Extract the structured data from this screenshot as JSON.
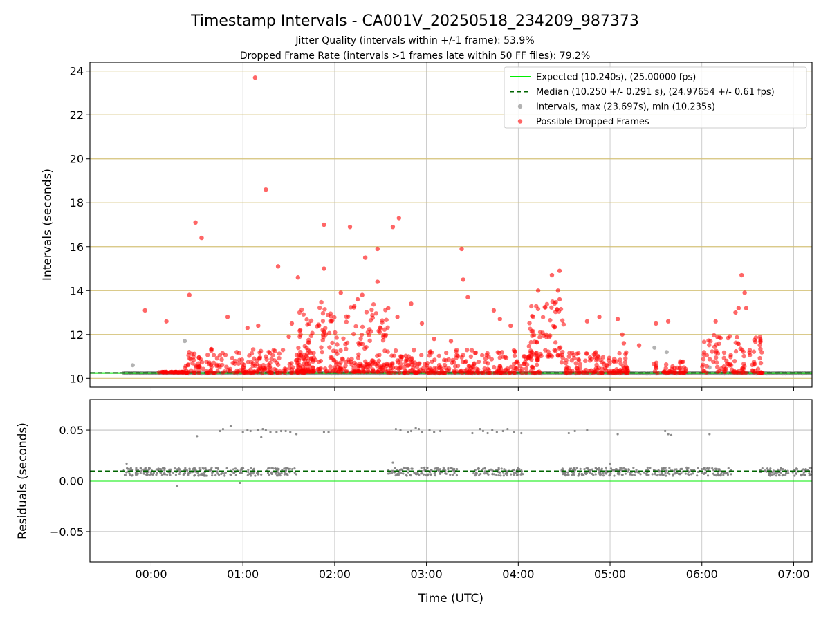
{
  "figure": {
    "title": "Timestamp Intervals - CA001V_20250518_234209_987373",
    "subtitle_1": "Jitter Quality (intervals within +/-1 frame): 53.9%",
    "subtitle_2": "Dropped Frame Rate (intervals >1 frames late within 50 FF files): 79.2%"
  },
  "chart_data": [
    {
      "type": "scatter",
      "panel": "top",
      "ylabel": "Intervals (seconds)",
      "xlabel": "",
      "xlim": [
        "23:20",
        "07:12"
      ],
      "ylim": [
        9.6,
        24.4
      ],
      "x_tick_labels": [
        "00:00",
        "01:00",
        "02:00",
        "03:00",
        "04:00",
        "05:00",
        "06:00",
        "07:00"
      ],
      "y_ticks": [
        10,
        12,
        14,
        16,
        18,
        20,
        22,
        24
      ],
      "grid": true,
      "legend_position": "top-right",
      "colors": {
        "expected": "#00ee00",
        "median": "#006400",
        "intervals": "#808080",
        "dropped": "#ff0000",
        "hgrid": "#d4c27a"
      },
      "series": [
        {
          "name": "Expected (10.240s), (25.00000 fps)",
          "kind": "hline",
          "y": 10.24
        },
        {
          "name": "Median (10.250 +/- 0.291 s), (24.97654 +/- 0.61 fps)",
          "kind": "hline-dashed",
          "y": 10.25
        },
        {
          "name": "Intervals, max (23.697s), min (10.235s)",
          "kind": "points",
          "x_range": [
            "23:42",
            "07:12"
          ],
          "points": [
            [
              "23:48",
              10.6
            ],
            [
              "00:22",
              11.7
            ],
            [
              "05:29",
              11.4
            ],
            [
              "06:05",
              10.5
            ],
            [
              "05:37",
              11.2
            ]
          ]
        },
        {
          "name": "Possible Dropped Frames",
          "kind": "points",
          "points": [
            [
              "01:08",
              23.7
            ],
            [
              "01:15",
              18.6
            ],
            [
              "00:29",
              17.1
            ],
            [
              "00:33",
              16.4
            ],
            [
              "01:53",
              17.0
            ],
            [
              "02:10",
              16.9
            ],
            [
              "02:42",
              17.3
            ],
            [
              "02:38",
              16.9
            ],
            [
              "02:28",
              15.9
            ],
            [
              "02:20",
              15.5
            ],
            [
              "01:53",
              15.0
            ],
            [
              "01:23",
              15.1
            ],
            [
              "03:23",
              15.9
            ],
            [
              "03:24",
              14.5
            ],
            [
              "04:27",
              14.9
            ],
            [
              "04:22",
              14.7
            ],
            [
              "06:26",
              14.7
            ],
            [
              "00:25",
              13.8
            ],
            [
              "01:36",
              14.6
            ],
            [
              "02:28",
              14.4
            ],
            [
              "03:27",
              13.7
            ],
            [
              "04:26",
              14.0
            ],
            [
              "04:27",
              13.6
            ],
            [
              "06:28",
              13.9
            ],
            [
              "06:24",
              13.2
            ],
            [
              "06:29",
              13.2
            ],
            [
              "06:22",
              13.0
            ],
            [
              "06:09",
              12.6
            ],
            [
              "05:30",
              12.5
            ],
            [
              "05:38",
              12.6
            ],
            [
              "23:56",
              13.1
            ],
            [
              "00:10",
              12.6
            ],
            [
              "02:35",
              13.2
            ],
            [
              "02:41",
              12.8
            ],
            [
              "02:50",
              13.4
            ],
            [
              "03:44",
              13.1
            ],
            [
              "03:48",
              12.7
            ],
            [
              "04:13",
              14.0
            ],
            [
              "00:50",
              12.8
            ],
            [
              "01:03",
              12.3
            ],
            [
              "01:10",
              12.4
            ],
            [
              "01:32",
              12.5
            ],
            [
              "02:04",
              13.9
            ],
            [
              "02:15",
              13.6
            ],
            [
              "02:18",
              13.8
            ],
            [
              "05:05",
              12.7
            ],
            [
              "04:53",
              12.8
            ],
            [
              "05:08",
              12.0
            ],
            [
              "04:45",
              12.6
            ],
            [
              "03:05",
              11.8
            ],
            [
              "03:16",
              11.7
            ],
            [
              "01:30",
              11.9
            ],
            [
              "02:57",
              12.5
            ],
            [
              "03:55",
              12.4
            ],
            [
              "05:09",
              11.6
            ],
            [
              "05:19",
              11.5
            ]
          ],
          "clusters": [
            {
              "x_range": [
                "00:05",
                "00:22"
              ],
              "y": 10.27,
              "count": 40
            },
            {
              "x_range": [
                "00:22",
                "01:45"
              ],
              "y_range": [
                10.25,
                11.4
              ],
              "count": 220
            },
            {
              "x_range": [
                "01:35",
                "02:35"
              ],
              "y_range": [
                10.3,
                13.5
              ],
              "count": 260
            },
            {
              "x_range": [
                "02:35",
                "04:15"
              ],
              "y_range": [
                10.25,
                11.3
              ],
              "count": 260
            },
            {
              "x_range": [
                "04:07",
                "04:30"
              ],
              "y_range": [
                11.0,
                13.5
              ],
              "count": 70
            },
            {
              "x_range": [
                "04:28",
                "05:12"
              ],
              "y_range": [
                10.25,
                11.2
              ],
              "count": 120
            },
            {
              "x_range": [
                "05:28",
                "05:50"
              ],
              "y_range": [
                10.25,
                10.9
              ],
              "count": 45
            },
            {
              "x_range": [
                "06:00",
                "06:40"
              ],
              "y_range": [
                10.25,
                12.0
              ],
              "count": 110
            }
          ]
        }
      ]
    },
    {
      "type": "scatter",
      "panel": "bottom",
      "ylabel": "Residuals (seconds)",
      "xlabel": "Time (UTC)",
      "xlim": [
        "23:20",
        "07:12"
      ],
      "ylim": [
        -0.08,
        0.08
      ],
      "x_tick_labels": [
        "00:00",
        "01:00",
        "02:00",
        "03:00",
        "04:00",
        "05:00",
        "06:00",
        "07:00"
      ],
      "y_tick_labels": [
        "−0.05",
        "0.00",
        "0.05"
      ],
      "y_ticks": [
        -0.05,
        0.0,
        0.05
      ],
      "grid": true,
      "series": [
        {
          "kind": "hline",
          "y": 0.0,
          "color": "#00ee00"
        },
        {
          "kind": "hline-dashed",
          "y": 0.0095,
          "color": "#006400"
        },
        {
          "kind": "points",
          "color": "#808080",
          "band": {
            "y_range": [
              0.005,
              0.013
            ],
            "segments": [
              [
                "23:42",
                "01:12"
              ],
              [
                "01:15",
                "01:35"
              ],
              [
                "02:35",
                "03:20"
              ],
              [
                "03:30",
                "04:03"
              ],
              [
                "04:28",
                "06:20"
              ],
              [
                "06:38",
                "07:12"
              ]
            ]
          },
          "points": [
            [
              "23:44",
              0.017
            ],
            [
              "00:17",
              -0.005
            ],
            [
              "00:30",
              0.044
            ],
            [
              "00:45",
              0.049
            ],
            [
              "00:47",
              0.051
            ],
            [
              "00:52",
              0.054
            ],
            [
              "01:00",
              0.048
            ],
            [
              "01:03",
              0.05
            ],
            [
              "01:05",
              0.049
            ],
            [
              "01:10",
              0.05
            ],
            [
              "01:12",
              0.043
            ],
            [
              "01:13",
              0.051
            ],
            [
              "01:15",
              0.05
            ],
            [
              "01:18",
              0.048
            ],
            [
              "01:22",
              0.048
            ],
            [
              "01:25",
              0.049
            ],
            [
              "01:28",
              0.049
            ],
            [
              "01:31",
              0.048
            ],
            [
              "01:35",
              0.046
            ],
            [
              "01:53",
              0.048
            ],
            [
              "01:56",
              0.048
            ],
            [
              "02:40",
              0.051
            ],
            [
              "02:43",
              0.05
            ],
            [
              "02:48",
              0.048
            ],
            [
              "02:50",
              0.049
            ],
            [
              "02:53",
              0.052
            ],
            [
              "02:55",
              0.051
            ],
            [
              "02:57",
              0.048
            ],
            [
              "03:02",
              0.05
            ],
            [
              "03:05",
              0.048
            ],
            [
              "03:09",
              0.049
            ],
            [
              "03:30",
              0.047
            ],
            [
              "03:35",
              0.051
            ],
            [
              "03:37",
              0.049
            ],
            [
              "03:40",
              0.047
            ],
            [
              "03:43",
              0.05
            ],
            [
              "03:46",
              0.048
            ],
            [
              "03:50",
              0.049
            ],
            [
              "03:53",
              0.051
            ],
            [
              "03:57",
              0.048
            ],
            [
              "04:02",
              0.047
            ],
            [
              "04:33",
              0.047
            ],
            [
              "04:37",
              0.049
            ],
            [
              "04:45",
              0.05
            ],
            [
              "05:05",
              0.046
            ],
            [
              "05:36",
              0.049
            ],
            [
              "05:38",
              0.046
            ],
            [
              "05:40",
              0.045
            ],
            [
              "06:05",
              0.046
            ],
            [
              "00:58",
              -0.002
            ],
            [
              "02:38",
              0.018
            ],
            [
              "05:00",
              0.017
            ]
          ]
        }
      ]
    }
  ]
}
